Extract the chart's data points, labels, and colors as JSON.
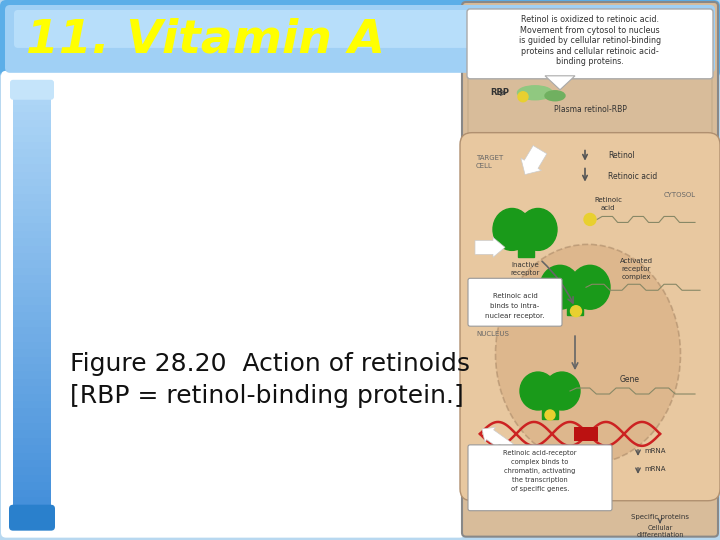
{
  "title": "11. Vitamin A",
  "title_color": "#FFFF00",
  "background_color": "#B8D8F0",
  "title_bar_color_left": "#92C8EE",
  "title_bar_color_right": "#FFFFFF",
  "left_panel_bg": "#FFFFFF",
  "left_stripe_color_top": "#3A8FD4",
  "left_stripe_color_bottom": "#A8D4F5",
  "caption_text_line1": "Figure 28.20  Action of retinoids",
  "caption_text_line2": "[RBP = retinol-binding protein.]",
  "caption_fontsize": 18,
  "title_fontsize": 34,
  "callout_text": [
    "Retinol is oxidized to retinoic acid.",
    "Movement from cytosol to nucleus",
    "is guided by cellular retinol-binding",
    "proteins and cellular retinoic acid-",
    "binding proteins."
  ],
  "diagram_bg": "#D8BC9A",
  "cell_bg": "#E8C8A0",
  "nucleus_bg": "#D4A87C",
  "green_receptor": "#1A9A1A",
  "gene_red": "#CC2222",
  "arrow_white": "#FFFFFF",
  "arrow_gray": "#888888",
  "text_dark": "#333333",
  "text_label": "#444444"
}
